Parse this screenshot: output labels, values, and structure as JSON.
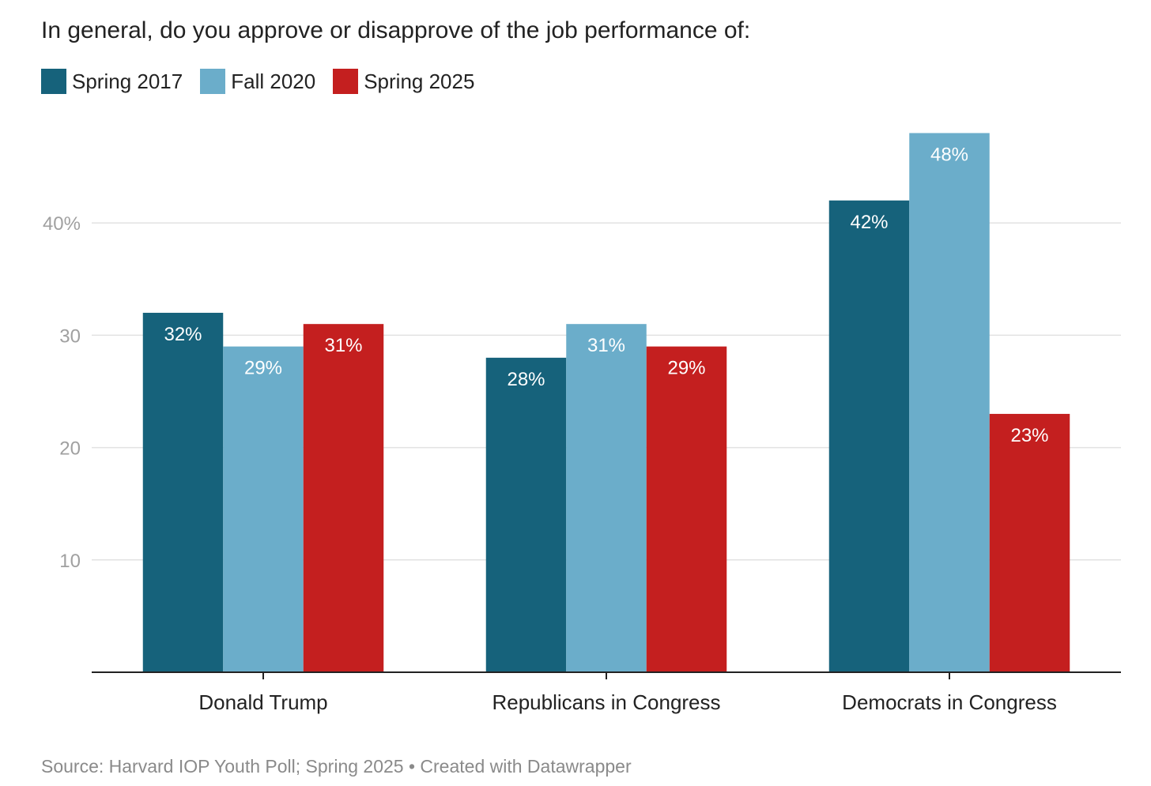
{
  "title": "In general, do you approve or disapprove of the job performance of:",
  "legend": [
    {
      "label": "Spring 2017",
      "color": "#16627b"
    },
    {
      "label": "Fall 2020",
      "color": "#6badca"
    },
    {
      "label": "Spring 2025",
      "color": "#c41f1f"
    }
  ],
  "chart_data": {
    "type": "bar",
    "title": "In general, do you approve or disapprove of the job performance of:",
    "categories": [
      "Donald Trump",
      "Republicans in Congress",
      "Democrats in Congress"
    ],
    "series": [
      {
        "name": "Spring 2017",
        "color": "#16627b",
        "values": [
          32,
          28,
          42
        ],
        "labels": [
          "32%",
          "28%",
          "42%"
        ]
      },
      {
        "name": "Fall 2020",
        "color": "#6badca",
        "values": [
          29,
          31,
          48
        ],
        "labels": [
          "29%",
          "31%",
          "48%"
        ]
      },
      {
        "name": "Spring 2025",
        "color": "#c41f1f",
        "values": [
          31,
          29,
          23
        ],
        "labels": [
          "31%",
          "29%",
          "23%"
        ]
      }
    ],
    "yticks": [
      10,
      20,
      30,
      40
    ],
    "ytick_labels": [
      "10",
      "20",
      "30",
      "40%"
    ],
    "ylim": [
      0,
      48
    ],
    "xlabel": "",
    "ylabel": "",
    "grid": true,
    "legend_position": "top-left"
  },
  "source": "Source: Harvard IOP Youth Poll; Spring 2025 • Created with Datawrapper"
}
